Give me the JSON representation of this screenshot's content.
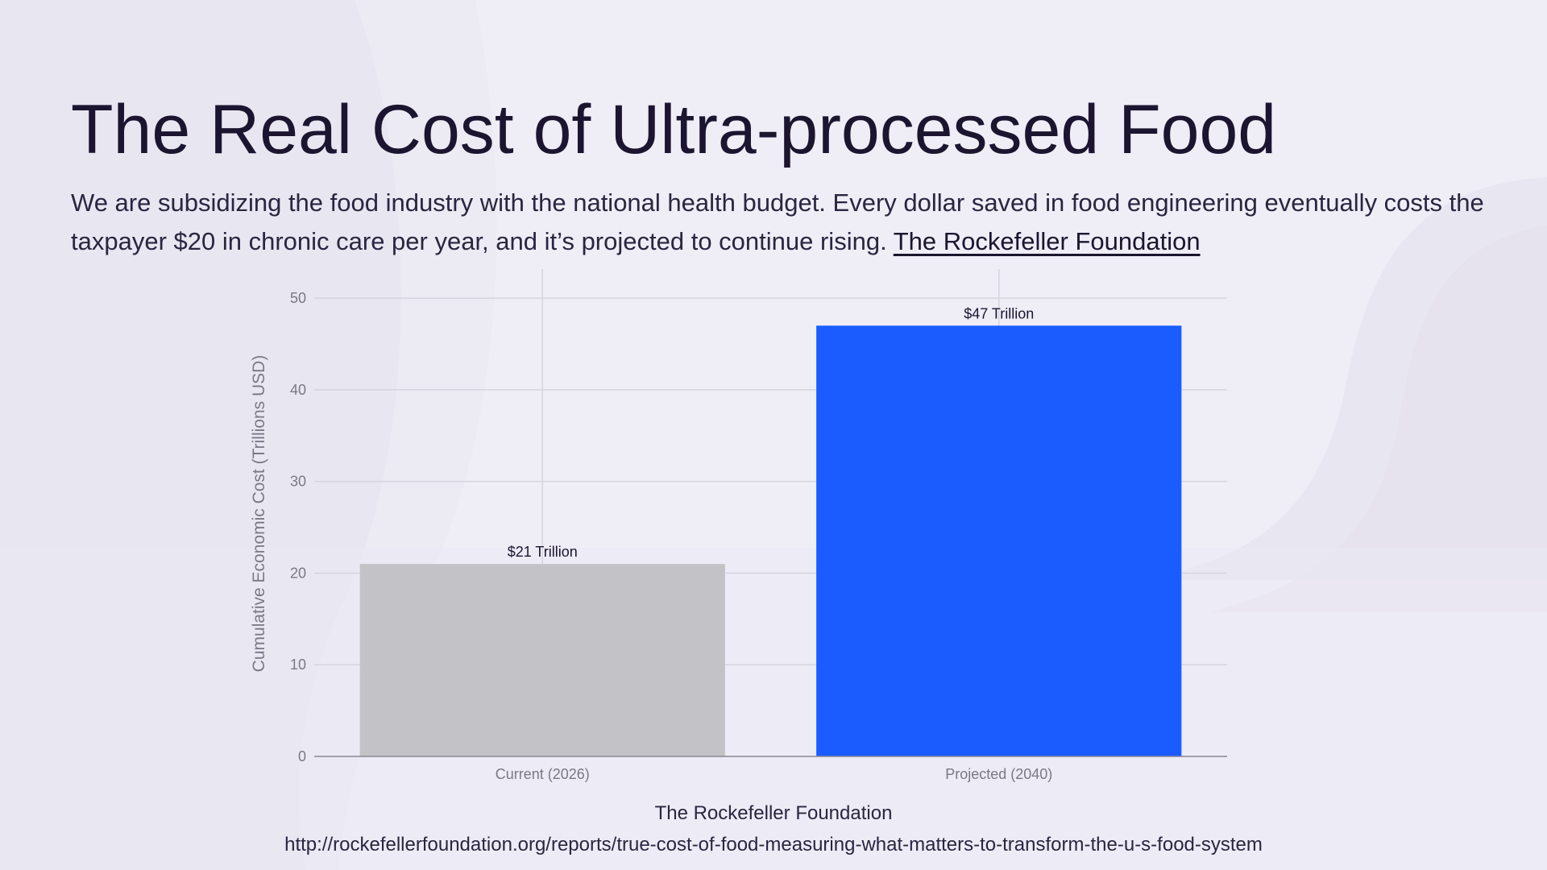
{
  "slide": {
    "title": "The Real Cost of Ultra-processed Food",
    "subtitle_text": "We are subsidizing the food industry with the national health budget. Every dollar saved in food engineering eventually costs the taxpayer $20 in chronic care per year, and it’s projected to continue rising.",
    "subtitle_link": "The Rockefeller Foundation",
    "source_name": "The Rockefeller Foundation",
    "source_url": "http://rockefellerfoundation.org/reports/true-cost-of-food-measuring-what-matters-to-transform-the-u-s-food-system"
  },
  "colors": {
    "background": "#efedf6",
    "current_bar": "#c3c2c7",
    "projected_bar": "#1a5cff",
    "grid": "#d6d4dd",
    "axis_text": "#7a7886"
  },
  "chart_data": {
    "type": "bar",
    "categories": [
      "Current (2026)",
      "Projected (2040)"
    ],
    "values": [
      21,
      47
    ],
    "data_labels": [
      "$21 Trillion",
      "$47 Trillion"
    ],
    "ylabel": "Cumulative Economic Cost (Trillions USD)",
    "xlabel": "",
    "ylim": [
      0,
      53
    ],
    "yticks": [
      0,
      10,
      20,
      30,
      40,
      50
    ],
    "grid": true,
    "legend": "none"
  }
}
